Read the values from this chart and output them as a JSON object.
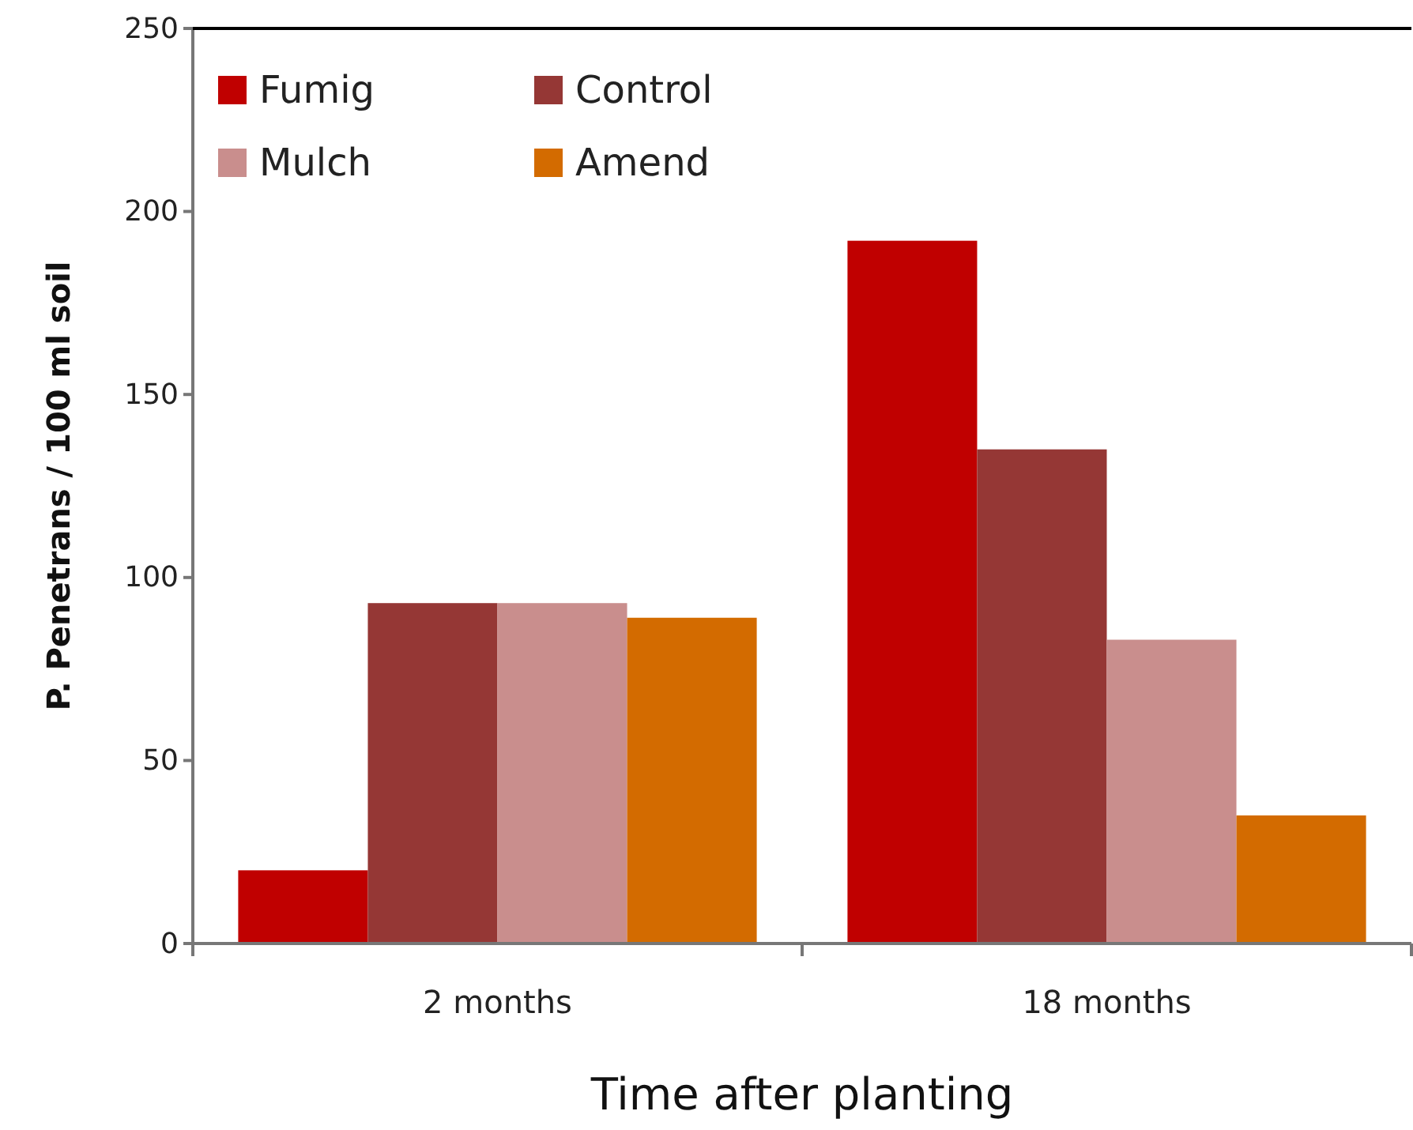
{
  "chart_data": {
    "type": "bar",
    "xlabel": "Time after planting",
    "ylabel": "P. Penetrans / 100 ml soil",
    "categories": [
      "2 months",
      "18 months"
    ],
    "series": [
      {
        "name": "Fumig",
        "color": "#c00000",
        "values": [
          20,
          192
        ]
      },
      {
        "name": "Control",
        "color": "#953735",
        "values": [
          93,
          135
        ]
      },
      {
        "name": "Mulch",
        "color": "#c98e8d",
        "values": [
          93,
          83
        ]
      },
      {
        "name": "Amend",
        "color": "#d36b00",
        "values": [
          89,
          35
        ]
      }
    ],
    "ylim": [
      0,
      250
    ],
    "yticks": [
      0,
      50,
      100,
      150,
      200,
      250
    ],
    "grid": false,
    "legend": "top left"
  }
}
